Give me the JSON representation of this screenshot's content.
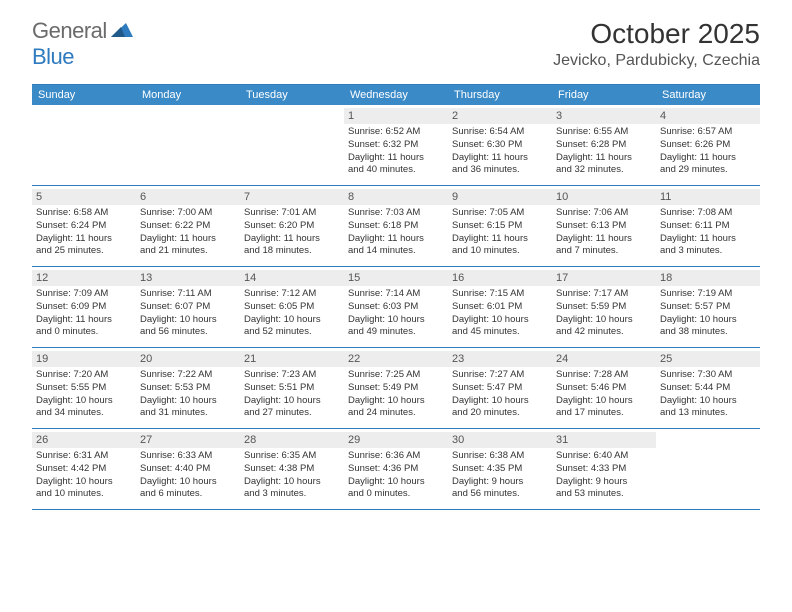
{
  "logo": {
    "text_general": "General",
    "text_blue": "Blue",
    "icon_fill": "#2f7bbf"
  },
  "title": "October 2025",
  "location": "Jevicko, Pardubicky, Czechia",
  "weekday_header_bg": "#3a8ac8",
  "weekday_header_fg": "#ffffff",
  "day_header_bg": "#ededed",
  "border_color": "#2f7bbf",
  "weekdays": [
    "Sunday",
    "Monday",
    "Tuesday",
    "Wednesday",
    "Thursday",
    "Friday",
    "Saturday"
  ],
  "weeks": [
    [
      {
        "n": "",
        "sunrise": "",
        "sunset": "",
        "daylight1": "",
        "daylight2": ""
      },
      {
        "n": "",
        "sunrise": "",
        "sunset": "",
        "daylight1": "",
        "daylight2": ""
      },
      {
        "n": "",
        "sunrise": "",
        "sunset": "",
        "daylight1": "",
        "daylight2": ""
      },
      {
        "n": "1",
        "sunrise": "Sunrise: 6:52 AM",
        "sunset": "Sunset: 6:32 PM",
        "daylight1": "Daylight: 11 hours",
        "daylight2": "and 40 minutes."
      },
      {
        "n": "2",
        "sunrise": "Sunrise: 6:54 AM",
        "sunset": "Sunset: 6:30 PM",
        "daylight1": "Daylight: 11 hours",
        "daylight2": "and 36 minutes."
      },
      {
        "n": "3",
        "sunrise": "Sunrise: 6:55 AM",
        "sunset": "Sunset: 6:28 PM",
        "daylight1": "Daylight: 11 hours",
        "daylight2": "and 32 minutes."
      },
      {
        "n": "4",
        "sunrise": "Sunrise: 6:57 AM",
        "sunset": "Sunset: 6:26 PM",
        "daylight1": "Daylight: 11 hours",
        "daylight2": "and 29 minutes."
      }
    ],
    [
      {
        "n": "5",
        "sunrise": "Sunrise: 6:58 AM",
        "sunset": "Sunset: 6:24 PM",
        "daylight1": "Daylight: 11 hours",
        "daylight2": "and 25 minutes."
      },
      {
        "n": "6",
        "sunrise": "Sunrise: 7:00 AM",
        "sunset": "Sunset: 6:22 PM",
        "daylight1": "Daylight: 11 hours",
        "daylight2": "and 21 minutes."
      },
      {
        "n": "7",
        "sunrise": "Sunrise: 7:01 AM",
        "sunset": "Sunset: 6:20 PM",
        "daylight1": "Daylight: 11 hours",
        "daylight2": "and 18 minutes."
      },
      {
        "n": "8",
        "sunrise": "Sunrise: 7:03 AM",
        "sunset": "Sunset: 6:18 PM",
        "daylight1": "Daylight: 11 hours",
        "daylight2": "and 14 minutes."
      },
      {
        "n": "9",
        "sunrise": "Sunrise: 7:05 AM",
        "sunset": "Sunset: 6:15 PM",
        "daylight1": "Daylight: 11 hours",
        "daylight2": "and 10 minutes."
      },
      {
        "n": "10",
        "sunrise": "Sunrise: 7:06 AM",
        "sunset": "Sunset: 6:13 PM",
        "daylight1": "Daylight: 11 hours",
        "daylight2": "and 7 minutes."
      },
      {
        "n": "11",
        "sunrise": "Sunrise: 7:08 AM",
        "sunset": "Sunset: 6:11 PM",
        "daylight1": "Daylight: 11 hours",
        "daylight2": "and 3 minutes."
      }
    ],
    [
      {
        "n": "12",
        "sunrise": "Sunrise: 7:09 AM",
        "sunset": "Sunset: 6:09 PM",
        "daylight1": "Daylight: 11 hours",
        "daylight2": "and 0 minutes."
      },
      {
        "n": "13",
        "sunrise": "Sunrise: 7:11 AM",
        "sunset": "Sunset: 6:07 PM",
        "daylight1": "Daylight: 10 hours",
        "daylight2": "and 56 minutes."
      },
      {
        "n": "14",
        "sunrise": "Sunrise: 7:12 AM",
        "sunset": "Sunset: 6:05 PM",
        "daylight1": "Daylight: 10 hours",
        "daylight2": "and 52 minutes."
      },
      {
        "n": "15",
        "sunrise": "Sunrise: 7:14 AM",
        "sunset": "Sunset: 6:03 PM",
        "daylight1": "Daylight: 10 hours",
        "daylight2": "and 49 minutes."
      },
      {
        "n": "16",
        "sunrise": "Sunrise: 7:15 AM",
        "sunset": "Sunset: 6:01 PM",
        "daylight1": "Daylight: 10 hours",
        "daylight2": "and 45 minutes."
      },
      {
        "n": "17",
        "sunrise": "Sunrise: 7:17 AM",
        "sunset": "Sunset: 5:59 PM",
        "daylight1": "Daylight: 10 hours",
        "daylight2": "and 42 minutes."
      },
      {
        "n": "18",
        "sunrise": "Sunrise: 7:19 AM",
        "sunset": "Sunset: 5:57 PM",
        "daylight1": "Daylight: 10 hours",
        "daylight2": "and 38 minutes."
      }
    ],
    [
      {
        "n": "19",
        "sunrise": "Sunrise: 7:20 AM",
        "sunset": "Sunset: 5:55 PM",
        "daylight1": "Daylight: 10 hours",
        "daylight2": "and 34 minutes."
      },
      {
        "n": "20",
        "sunrise": "Sunrise: 7:22 AM",
        "sunset": "Sunset: 5:53 PM",
        "daylight1": "Daylight: 10 hours",
        "daylight2": "and 31 minutes."
      },
      {
        "n": "21",
        "sunrise": "Sunrise: 7:23 AM",
        "sunset": "Sunset: 5:51 PM",
        "daylight1": "Daylight: 10 hours",
        "daylight2": "and 27 minutes."
      },
      {
        "n": "22",
        "sunrise": "Sunrise: 7:25 AM",
        "sunset": "Sunset: 5:49 PM",
        "daylight1": "Daylight: 10 hours",
        "daylight2": "and 24 minutes."
      },
      {
        "n": "23",
        "sunrise": "Sunrise: 7:27 AM",
        "sunset": "Sunset: 5:47 PM",
        "daylight1": "Daylight: 10 hours",
        "daylight2": "and 20 minutes."
      },
      {
        "n": "24",
        "sunrise": "Sunrise: 7:28 AM",
        "sunset": "Sunset: 5:46 PM",
        "daylight1": "Daylight: 10 hours",
        "daylight2": "and 17 minutes."
      },
      {
        "n": "25",
        "sunrise": "Sunrise: 7:30 AM",
        "sunset": "Sunset: 5:44 PM",
        "daylight1": "Daylight: 10 hours",
        "daylight2": "and 13 minutes."
      }
    ],
    [
      {
        "n": "26",
        "sunrise": "Sunrise: 6:31 AM",
        "sunset": "Sunset: 4:42 PM",
        "daylight1": "Daylight: 10 hours",
        "daylight2": "and 10 minutes."
      },
      {
        "n": "27",
        "sunrise": "Sunrise: 6:33 AM",
        "sunset": "Sunset: 4:40 PM",
        "daylight1": "Daylight: 10 hours",
        "daylight2": "and 6 minutes."
      },
      {
        "n": "28",
        "sunrise": "Sunrise: 6:35 AM",
        "sunset": "Sunset: 4:38 PM",
        "daylight1": "Daylight: 10 hours",
        "daylight2": "and 3 minutes."
      },
      {
        "n": "29",
        "sunrise": "Sunrise: 6:36 AM",
        "sunset": "Sunset: 4:36 PM",
        "daylight1": "Daylight: 10 hours",
        "daylight2": "and 0 minutes."
      },
      {
        "n": "30",
        "sunrise": "Sunrise: 6:38 AM",
        "sunset": "Sunset: 4:35 PM",
        "daylight1": "Daylight: 9 hours",
        "daylight2": "and 56 minutes."
      },
      {
        "n": "31",
        "sunrise": "Sunrise: 6:40 AM",
        "sunset": "Sunset: 4:33 PM",
        "daylight1": "Daylight: 9 hours",
        "daylight2": "and 53 minutes."
      },
      {
        "n": "",
        "sunrise": "",
        "sunset": "",
        "daylight1": "",
        "daylight2": ""
      }
    ]
  ]
}
